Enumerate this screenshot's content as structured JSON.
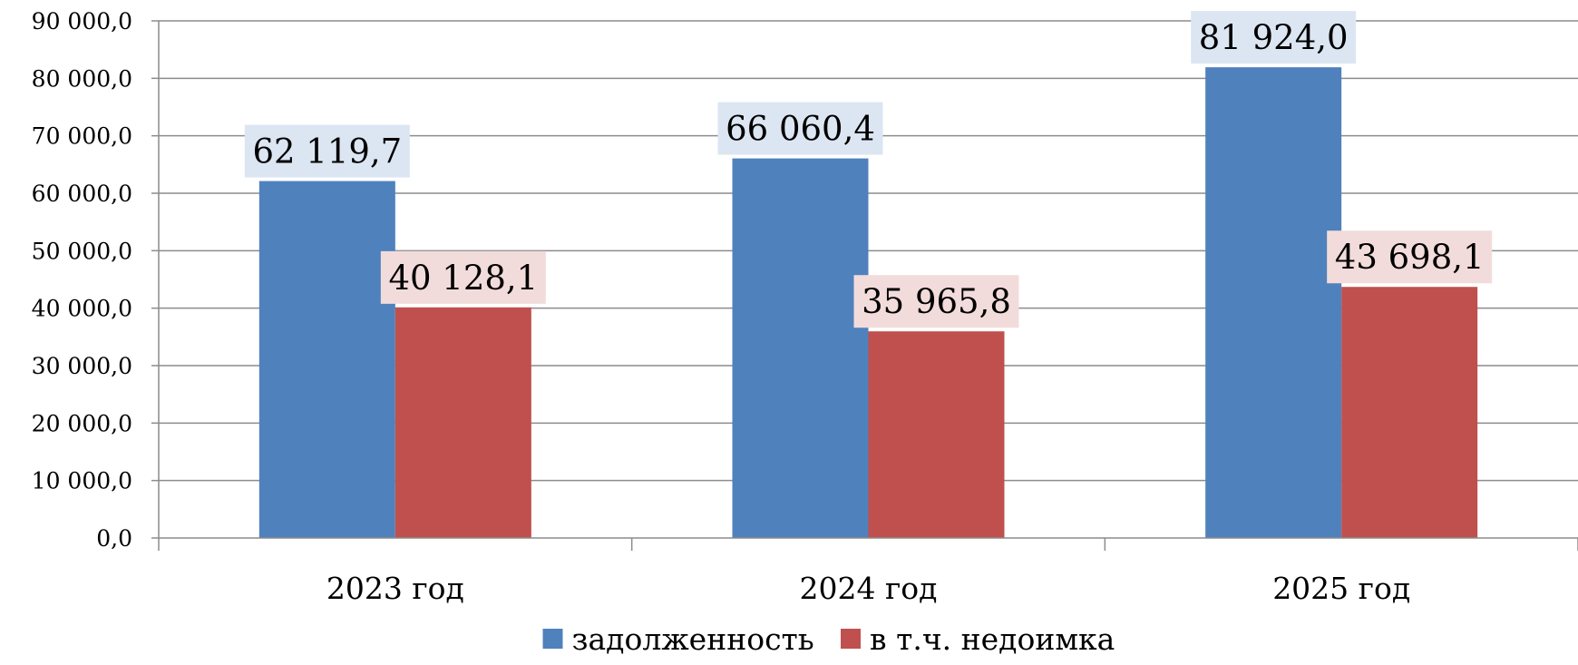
{
  "chart_data": {
    "type": "bar",
    "categories": [
      "2023 год",
      "2024 год",
      "2025 год"
    ],
    "series": [
      {
        "name": "задолженность",
        "values": [
          62119.7,
          66060.4,
          81924.0
        ],
        "labels": [
          "62 119,7",
          "66 060,4",
          "81 924,0"
        ],
        "color": "#4F81BD",
        "label_bg": "#DCE6F2"
      },
      {
        "name": "в т.ч. недоимка",
        "values": [
          40128.1,
          35965.8,
          43698.1
        ],
        "labels": [
          "40 128,1",
          "35 965,8",
          "43 698,1"
        ],
        "color": "#C0504D",
        "label_bg": "#F2DCDB"
      }
    ],
    "ylim": [
      0,
      90000
    ],
    "yticks": [
      0,
      10000,
      20000,
      30000,
      40000,
      50000,
      60000,
      70000,
      80000,
      90000
    ],
    "ytick_labels": [
      "0,0",
      "10 000,0",
      "20 000,0",
      "30 000,0",
      "40 000,0",
      "50 000,0",
      "60 000,0",
      "70 000,0",
      "80 000,0",
      "90 000,0"
    ],
    "grid": true,
    "legend_position": "bottom"
  }
}
